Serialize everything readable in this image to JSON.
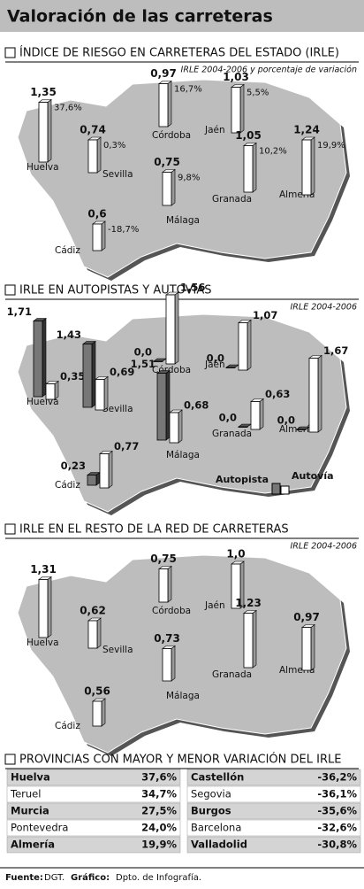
{
  "header": {
    "title": "Valoración de las carreteras"
  },
  "sections": [
    {
      "title": "ÍNDICE DE RIESGO EN CARRETERAS DEL ESTADO (IRLE)",
      "subtitle": "IRLE 2004-2006 y porcentaje de variación",
      "provinces": [
        {
          "name": "Huelva",
          "value": {
            "value": 1.35,
            "label": "1,35"
          },
          "change": {
            "value": 37.6,
            "label": "37,6%"
          }
        },
        {
          "name": "Sevilla",
          "value": {
            "value": 0.74,
            "label": "0,74"
          },
          "change": {
            "value": 0.3,
            "label": "0,3%"
          }
        },
        {
          "name": "Córdoba",
          "value": {
            "value": 0.97,
            "label": "0,97"
          },
          "change": {
            "value": 16.7,
            "label": "16,7%"
          }
        },
        {
          "name": "Jaén",
          "value": {
            "value": 1.03,
            "label": "1,03"
          },
          "change": {
            "value": 5.5,
            "label": "5,5%"
          }
        },
        {
          "name": "Granada",
          "value": {
            "value": 1.05,
            "label": "1,05"
          },
          "change": {
            "value": 10.2,
            "label": "10,2%"
          }
        },
        {
          "name": "Almería",
          "value": {
            "value": 1.24,
            "label": "1,24"
          },
          "change": {
            "value": 19.9,
            "label": "19,9%"
          }
        },
        {
          "name": "Málaga",
          "value": {
            "value": 0.75,
            "label": "0,75"
          },
          "change": {
            "value": 9.8,
            "label": "9,8%"
          }
        },
        {
          "name": "Cádiz",
          "value": {
            "value": 0.6,
            "label": "0,6"
          },
          "change": {
            "value": -18.7,
            "label": "-18,7%"
          }
        }
      ]
    },
    {
      "title": "IRLE EN AUTOPISTAS Y AUTOVIAS",
      "subtitle": "IRLE 2004-2006",
      "legend": [
        "Autopista",
        "Autovía"
      ],
      "provinces": [
        {
          "name": "Huelva",
          "autopista": {
            "value": 1.71,
            "label": "1,71"
          },
          "autovia": {
            "value": 0.35,
            "label": "0,35"
          }
        },
        {
          "name": "Sevilla",
          "autopista": {
            "value": 1.43,
            "label": "1,43"
          },
          "autovia": {
            "value": 0.69,
            "label": "0,69"
          }
        },
        {
          "name": "Córdoba",
          "autopista": {
            "value": 0.0,
            "label": "0,0"
          },
          "autovia": {
            "value": 1.56,
            "label": "1,56"
          }
        },
        {
          "name": "Jaén",
          "autopista": {
            "value": 0.0,
            "label": "0,0"
          },
          "autovia": {
            "value": 1.07,
            "label": "1,07"
          }
        },
        {
          "name": "Granada",
          "autopista": {
            "value": 0.0,
            "label": "0,0"
          },
          "autovia": {
            "value": 0.63,
            "label": "0,63"
          }
        },
        {
          "name": "Almería",
          "autopista": {
            "value": 0.0,
            "label": "0,0"
          },
          "autovia": {
            "value": 1.67,
            "label": "1,67"
          }
        },
        {
          "name": "Málaga",
          "autopista": {
            "value": 1.51,
            "label": "1,51"
          },
          "autovia": {
            "value": 0.68,
            "label": "0,68"
          }
        },
        {
          "name": "Cádiz",
          "autopista": {
            "value": 0.23,
            "label": "0,23"
          },
          "autovia": {
            "value": 0.77,
            "label": "0,77"
          }
        }
      ]
    },
    {
      "title": "IRLE EN EL RESTO DE LA RED DE CARRETERAS",
      "subtitle": "IRLE 2004-2006",
      "provinces": [
        {
          "name": "Huelva",
          "value": {
            "value": 1.31,
            "label": "1,31"
          }
        },
        {
          "name": "Sevilla",
          "value": {
            "value": 0.62,
            "label": "0,62"
          }
        },
        {
          "name": "Córdoba",
          "value": {
            "value": 0.75,
            "label": "0,75"
          }
        },
        {
          "name": "Jaén",
          "value": {
            "value": 1.0,
            "label": "1,0"
          }
        },
        {
          "name": "Granada",
          "value": {
            "value": 1.23,
            "label": "1,23"
          }
        },
        {
          "name": "Almería",
          "value": {
            "value": 0.97,
            "label": "0,97"
          }
        },
        {
          "name": "Málaga",
          "value": {
            "value": 0.73,
            "label": "0,73"
          }
        },
        {
          "name": "Cádiz",
          "value": {
            "value": 0.56,
            "label": "0,56"
          }
        }
      ]
    }
  ],
  "table": {
    "title": "PROVINCIAS CON MAYOR Y MENOR VARIACIÓN DEL IRLE",
    "rows": [
      [
        "Huelva",
        "37,6%",
        "Castellón",
        "-36,2%"
      ],
      [
        "Teruel",
        "34,7%",
        "Segovia",
        "-36,1%"
      ],
      [
        "Murcia",
        "27,5%",
        "Burgos",
        "-35,6%"
      ],
      [
        "Pontevedra",
        "24,0%",
        "Barcelona",
        "-32,6%"
      ],
      [
        "Almería",
        "19,9%",
        "Valladolid",
        "-30,8%"
      ]
    ]
  },
  "footer": {
    "source_label": "Fuente:",
    "source": "DGT.",
    "credit_label": "Gráfico:",
    "credit": "Dpto. de Infografía."
  }
}
